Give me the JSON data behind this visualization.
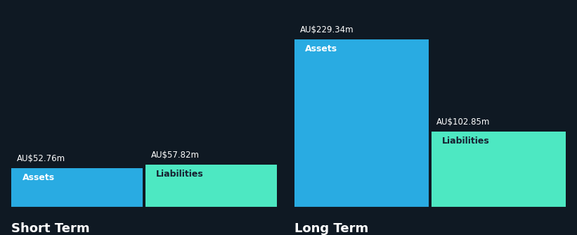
{
  "background_color": "#0f1923",
  "bar_color_assets": "#29abe2",
  "bar_color_liabilities": "#4de8c2",
  "text_color_white": "#ffffff",
  "text_color_dark": "#162030",
  "axis_line_color": "#2a3a4a",
  "short_term_assets": 52.76,
  "short_term_liabilities": 57.82,
  "long_term_assets": 229.34,
  "long_term_liabilities": 102.85,
  "short_term_label": "Short Term",
  "long_term_label": "Long Term",
  "assets_label": "Assets",
  "liabilities_label": "Liabilities",
  "value_fontsize": 8.5,
  "inner_label_fontsize": 9,
  "axis_label_fontsize": 13
}
